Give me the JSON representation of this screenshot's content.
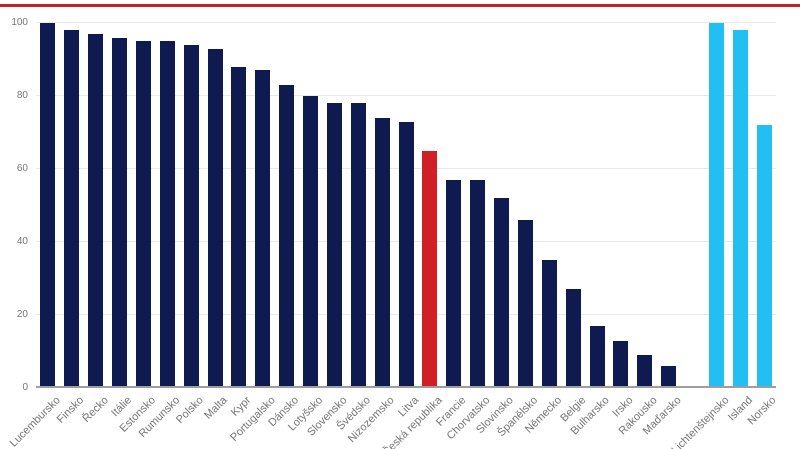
{
  "page": {
    "background": "#ffffff",
    "accent_line_color": "#c5212e"
  },
  "axis_style": {
    "tick_label_color": "#757575",
    "gridline_color": "#e9e9e9",
    "baseline_color": "#9e9e9e"
  },
  "chart_data": {
    "type": "bar",
    "title": "",
    "xlabel": "",
    "ylabel": "",
    "ylim": [
      0,
      100
    ],
    "yticks": [
      0,
      20,
      40,
      60,
      80,
      100
    ],
    "grid": true,
    "legend": "none",
    "gap_after_index": 26,
    "colors": {
      "eu": "#0e1a50",
      "highlight": "#d02026",
      "efta": "#22c0f2"
    },
    "bars": [
      {
        "label": "Lucembursko",
        "value": 100,
        "series": "eu"
      },
      {
        "label": "Finsko",
        "value": 98,
        "series": "eu"
      },
      {
        "label": "Řecko",
        "value": 97,
        "series": "eu"
      },
      {
        "label": "Itálie",
        "value": 96,
        "series": "eu"
      },
      {
        "label": "Estonsko",
        "value": 95,
        "series": "eu"
      },
      {
        "label": "Rumunsko",
        "value": 95,
        "series": "eu"
      },
      {
        "label": "Polsko",
        "value": 94,
        "series": "eu"
      },
      {
        "label": "Malta",
        "value": 93,
        "series": "eu"
      },
      {
        "label": "Kypr",
        "value": 88,
        "series": "eu"
      },
      {
        "label": "Portugalsko",
        "value": 87,
        "series": "eu"
      },
      {
        "label": "Dánsko",
        "value": 83,
        "series": "eu"
      },
      {
        "label": "Lotyšsko",
        "value": 80,
        "series": "eu"
      },
      {
        "label": "Slovensko",
        "value": 78,
        "series": "eu"
      },
      {
        "label": "Švédsko",
        "value": 78,
        "series": "eu"
      },
      {
        "label": "Nizozemsko",
        "value": 74,
        "series": "eu"
      },
      {
        "label": "Litva",
        "value": 73,
        "series": "eu"
      },
      {
        "label": "Česká republika",
        "value": 65,
        "series": "highlight"
      },
      {
        "label": "Francie",
        "value": 57,
        "series": "eu"
      },
      {
        "label": "Chorvatsko",
        "value": 57,
        "series": "eu"
      },
      {
        "label": "Slovinsko",
        "value": 52,
        "series": "eu"
      },
      {
        "label": "Španělsko",
        "value": 46,
        "series": "eu"
      },
      {
        "label": "Německo",
        "value": 35,
        "series": "eu"
      },
      {
        "label": "Belgie",
        "value": 27,
        "series": "eu"
      },
      {
        "label": "Bulharsko",
        "value": 17,
        "series": "eu"
      },
      {
        "label": "Irsko",
        "value": 13,
        "series": "eu"
      },
      {
        "label": "Rakousko",
        "value": 9,
        "series": "eu"
      },
      {
        "label": "Maďarsko",
        "value": 6,
        "series": "eu"
      },
      {
        "label": "Lichtenštejnsko",
        "value": 100,
        "series": "efta"
      },
      {
        "label": "Island",
        "value": 98,
        "series": "efta"
      },
      {
        "label": "Norsko",
        "value": 72,
        "series": "efta"
      }
    ]
  }
}
